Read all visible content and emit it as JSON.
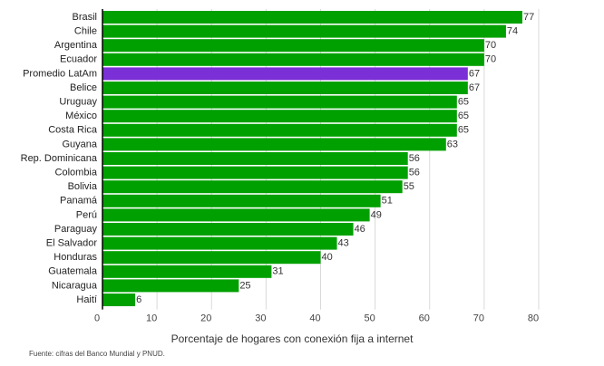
{
  "chart_data": {
    "type": "bar",
    "orientation": "horizontal",
    "categories": [
      "Brasil",
      "Chile",
      "Argentina",
      "Ecuador",
      "Promedio LatAm",
      "Belice",
      "Uruguay",
      "México",
      "Costa Rica",
      "Guyana",
      "Rep. Dominicana",
      "Colombia",
      "Bolivia",
      "Panamá",
      "Perú",
      "Paraguay",
      "El Salvador",
      "Honduras",
      "Guatemala",
      "Nicaragua",
      "Haití"
    ],
    "values": [
      77,
      74,
      70,
      70,
      67,
      67,
      65,
      65,
      65,
      63,
      56,
      56,
      55,
      51,
      49,
      46,
      43,
      40,
      31,
      25,
      6
    ],
    "highlight_category": "Promedio LatAm",
    "colors": {
      "bar": "#00a000",
      "highlight": "#7b2fd6",
      "axis": "#000000"
    },
    "xlim": [
      0,
      80
    ],
    "xticks": [
      0,
      10,
      20,
      30,
      40,
      50,
      60,
      70,
      80
    ],
    "grid": true,
    "xlabel": "Porcentaje de hogares con conexión fija a internet",
    "ylabel": "",
    "title": ""
  },
  "footer": {
    "source": "Fuente: cifras del Banco Mundial y PNUD."
  }
}
